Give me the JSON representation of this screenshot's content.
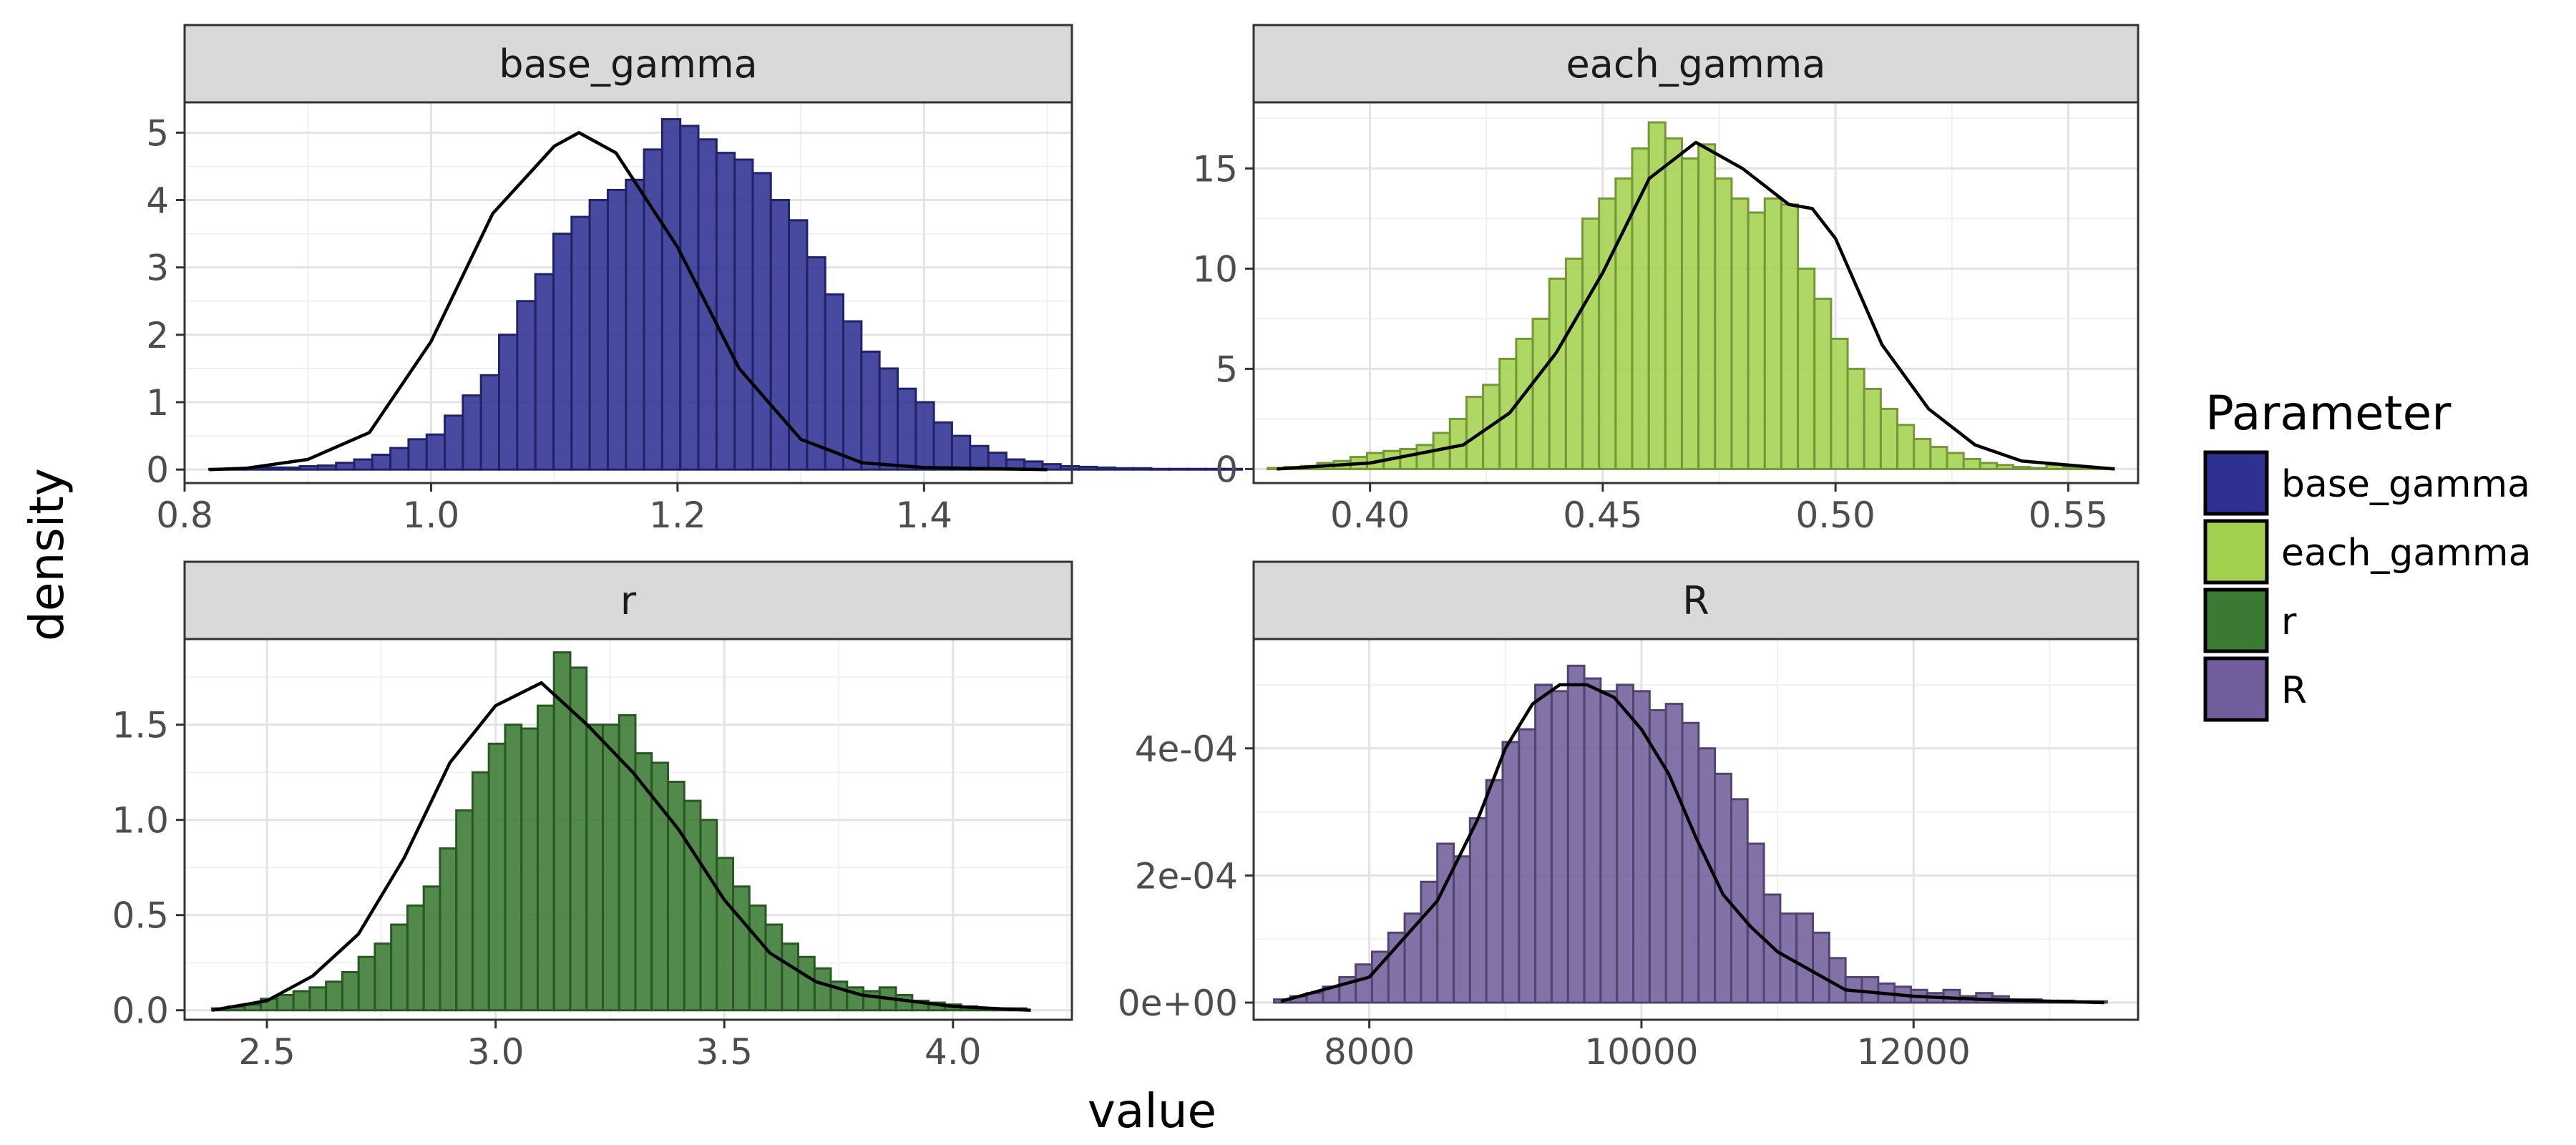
{
  "chart_data": {
    "type": "bar",
    "xlabel": "value",
    "ylabel": "density",
    "legend": {
      "title": "Parameter",
      "position": "right",
      "entries": [
        {
          "name": "base_gamma",
          "color": "#2e3192"
        },
        {
          "name": "each_gamma",
          "color": "#a3d14f"
        },
        {
          "name": "r",
          "color": "#3a7a32"
        },
        {
          "name": "R",
          "color": "#725e9c"
        }
      ]
    },
    "panels": [
      {
        "name": "base_gamma",
        "fill": "#2e3192",
        "grid": true,
        "xlim": [
          0.8,
          1.52
        ],
        "ylim": [
          -0.2,
          5.45
        ],
        "x_ticks": [
          0.8,
          1.0,
          1.2,
          1.4
        ],
        "x_tick_labels": [
          "0.8",
          "1.0",
          "1.2",
          "1.4"
        ],
        "y_ticks": [
          0,
          1,
          2,
          3,
          4,
          5
        ],
        "y_tick_labels": [
          "0",
          "1",
          "2",
          "3",
          "4",
          "5"
        ],
        "bins": {
          "start": 0.82,
          "width": 0.0147,
          "values": [
            0.01,
            0.01,
            0.02,
            0.03,
            0.03,
            0.05,
            0.06,
            0.1,
            0.15,
            0.22,
            0.32,
            0.45,
            0.52,
            0.8,
            1.1,
            1.4,
            2.0,
            2.5,
            2.9,
            3.5,
            3.75,
            4.0,
            4.15,
            4.3,
            4.75,
            5.2,
            5.1,
            4.9,
            4.7,
            4.6,
            4.4,
            4.0,
            3.7,
            3.15,
            2.6,
            2.2,
            1.75,
            1.5,
            1.2,
            1.0,
            0.7,
            0.5,
            0.35,
            0.25,
            0.15,
            0.12,
            0.08,
            0.05,
            0.04,
            0.03,
            0.02,
            0.02,
            0.01,
            0.01,
            0.01,
            0.01,
            0.01
          ]
        },
        "density_curve": {
          "x": [
            0.82,
            0.85,
            0.9,
            0.95,
            1.0,
            1.05,
            1.1,
            1.12,
            1.15,
            1.2,
            1.25,
            1.3,
            1.35,
            1.4,
            1.5
          ],
          "y": [
            0.0,
            0.02,
            0.15,
            0.55,
            1.9,
            3.8,
            4.8,
            5.0,
            4.7,
            3.3,
            1.5,
            0.45,
            0.1,
            0.03,
            0.0
          ]
        }
      },
      {
        "name": "each_gamma",
        "fill": "#a3d14f",
        "grid": true,
        "xlim": [
          0.375,
          0.565
        ],
        "ylim": [
          -0.7,
          18.3
        ],
        "x_ticks": [
          0.4,
          0.45,
          0.5,
          0.55
        ],
        "x_tick_labels": [
          "0.40",
          "0.45",
          "0.50",
          "0.55"
        ],
        "y_ticks": [
          0,
          5,
          10,
          15
        ],
        "y_tick_labels": [
          "0",
          "5",
          "10",
          "15"
        ],
        "bins": {
          "start": 0.378,
          "width": 0.00356,
          "values": [
            0.05,
            0.1,
            0.15,
            0.3,
            0.4,
            0.6,
            0.8,
            0.9,
            1.0,
            1.2,
            1.8,
            2.5,
            3.6,
            4.2,
            5.5,
            6.5,
            7.5,
            9.5,
            10.5,
            12.5,
            13.5,
            14.5,
            16.0,
            17.3,
            16.5,
            15.5,
            16.2,
            14.5,
            13.5,
            12.8,
            13.5,
            13.2,
            10.0,
            8.5,
            6.5,
            5.0,
            4.0,
            3.0,
            2.2,
            1.5,
            1.1,
            0.8,
            0.5,
            0.3,
            0.2,
            0.1,
            0.05,
            0.2,
            0.1,
            0.05,
            0.05
          ]
        },
        "density_curve": {
          "x": [
            0.38,
            0.4,
            0.42,
            0.43,
            0.44,
            0.45,
            0.46,
            0.47,
            0.48,
            0.49,
            0.495,
            0.5,
            0.51,
            0.52,
            0.53,
            0.54,
            0.56
          ],
          "y": [
            0.0,
            0.3,
            1.2,
            2.8,
            5.8,
            9.8,
            14.5,
            16.3,
            15.0,
            13.2,
            13.0,
            11.5,
            6.2,
            3.0,
            1.2,
            0.4,
            0.0
          ]
        }
      },
      {
        "name": "r",
        "fill": "#3a7a32",
        "grid": true,
        "xlim": [
          2.32,
          4.26
        ],
        "ylim": [
          -0.05,
          1.95
        ],
        "x_ticks": [
          2.5,
          3.0,
          3.5,
          4.0
        ],
        "x_tick_labels": [
          "2.5",
          "3.0",
          "3.5",
          "4.0"
        ],
        "y_ticks": [
          0.0,
          0.5,
          1.0,
          1.5
        ],
        "y_tick_labels": [
          "0.0",
          "0.5",
          "1.0",
          "1.5"
        ],
        "bins": {
          "start": 2.38,
          "width": 0.0356,
          "values": [
            0.01,
            0.02,
            0.03,
            0.06,
            0.08,
            0.1,
            0.12,
            0.15,
            0.2,
            0.28,
            0.35,
            0.45,
            0.55,
            0.65,
            0.85,
            1.05,
            1.25,
            1.4,
            1.5,
            1.48,
            1.6,
            1.88,
            1.8,
            1.5,
            1.5,
            1.55,
            1.35,
            1.3,
            1.2,
            1.1,
            1.0,
            0.8,
            0.65,
            0.55,
            0.45,
            0.35,
            0.28,
            0.22,
            0.15,
            0.12,
            0.1,
            0.12,
            0.08,
            0.05,
            0.04,
            0.03,
            0.02,
            0.01,
            0.01,
            0.01
          ]
        },
        "density_curve": {
          "x": [
            2.38,
            2.5,
            2.6,
            2.7,
            2.8,
            2.9,
            3.0,
            3.1,
            3.2,
            3.3,
            3.4,
            3.5,
            3.6,
            3.7,
            3.8,
            4.0,
            4.17
          ],
          "y": [
            0.0,
            0.05,
            0.18,
            0.4,
            0.8,
            1.3,
            1.6,
            1.72,
            1.5,
            1.25,
            0.95,
            0.58,
            0.3,
            0.15,
            0.08,
            0.02,
            0.0
          ]
        }
      },
      {
        "name": "R",
        "fill": "#725e9c",
        "grid": true,
        "xlim": [
          7150,
          13650
        ],
        "ylim": [
          -2.7e-05,
          0.000572
        ],
        "x_ticks": [
          8000,
          10000,
          12000
        ],
        "x_tick_labels": [
          "8000",
          "10000",
          "12000"
        ],
        "y_ticks": [
          0,
          0.0002,
          0.0004
        ],
        "y_tick_labels": [
          "0e+00",
          "2e-04",
          "4e-04"
        ],
        "bins": {
          "start": 7300,
          "width": 120,
          "values": [
            5e-06,
            1e-05,
            1.5e-05,
            2.5e-05,
            4e-05,
            6e-05,
            8e-05,
            0.00011,
            0.00014,
            0.00019,
            0.00025,
            0.00023,
            0.00029,
            0.00035,
            0.00041,
            0.00043,
            0.0005,
            0.00049,
            0.00053,
            0.00051,
            0.00049,
            0.0005,
            0.00049,
            0.00046,
            0.00047,
            0.00044,
            0.0004,
            0.00036,
            0.00032,
            0.00025,
            0.00017,
            0.00014,
            0.00014,
            0.00011,
            7e-05,
            4e-05,
            4e-05,
            3e-05,
            2.5e-05,
            2e-05,
            1.5e-05,
            2e-05,
            1e-05,
            1.5e-05,
            1e-05,
            5e-06,
            5e-06,
            3e-06,
            3e-06,
            2e-06,
            2e-06
          ]
        },
        "density_curve": {
          "x": [
            7350,
            8000,
            8500,
            8800,
            9000,
            9200,
            9400,
            9600,
            9800,
            10000,
            10200,
            10400,
            10600,
            10800,
            11000,
            11500,
            12000,
            12500,
            13400
          ],
          "y": [
            2e-06,
            4e-05,
            0.00016,
            0.00029,
            0.0004,
            0.00047,
            0.0005,
            0.0005,
            0.00048,
            0.00043,
            0.00036,
            0.00026,
            0.00017,
            0.00012,
            8e-05,
            2e-05,
            1e-05,
            5e-06,
            0.0
          ]
        }
      }
    ]
  }
}
